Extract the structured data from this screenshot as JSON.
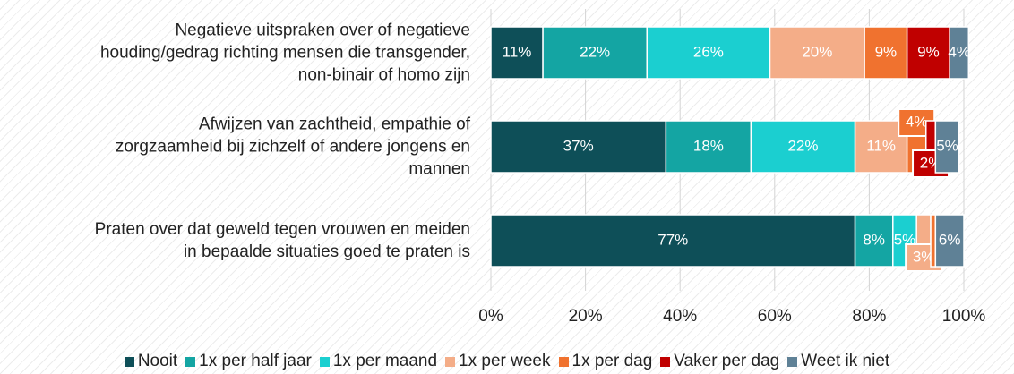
{
  "chart_data": {
    "type": "stacked-barh",
    "categories": [
      "Negatieve uitspraken over of negatieve\nhouding/gedrag richting mensen die transgender,\nnon-binair of homo zijn",
      "Afwijzen van zachtheid, empathie of\nzorgzaamheid bij zichzelf of andere jongens en\nmannen",
      "Praten over dat geweld tegen vrouwen en meiden\nin bepaalde situaties goed te praten is"
    ],
    "series": [
      {
        "name": "Nooit",
        "color": "#0e4f58",
        "values": [
          11,
          37,
          77
        ],
        "value_labels": [
          "11%",
          "37%",
          "77%"
        ]
      },
      {
        "name": "1x per half jaar",
        "color": "#14a5a3",
        "values": [
          22,
          18,
          8
        ],
        "value_labels": [
          "22%",
          "18%",
          "8%"
        ]
      },
      {
        "name": "1x per maand",
        "color": "#1bcfd0",
        "values": [
          26,
          22,
          5
        ],
        "value_labels": [
          "26%",
          "22%",
          "5%"
        ]
      },
      {
        "name": "1x per week",
        "color": "#f4ad88",
        "values": [
          20,
          11,
          3
        ],
        "value_labels": [
          "20%",
          "11%",
          "3%"
        ]
      },
      {
        "name": "1x per dag",
        "color": "#f0722f",
        "values": [
          9,
          4,
          1
        ],
        "value_labels": [
          "9%",
          "4%",
          null
        ]
      },
      {
        "name": "Vaker per dag",
        "color": "#c00000",
        "values": [
          9,
          2,
          0
        ],
        "value_labels": [
          "9%",
          "2%",
          null
        ]
      },
      {
        "name": "Weet ik niet",
        "color": "#5f8196",
        "values": [
          4,
          5,
          6
        ],
        "value_labels": [
          "4%",
          "5%",
          "6%"
        ]
      }
    ],
    "xlim": [
      0,
      100
    ],
    "xticks": [
      {
        "value": 0,
        "label": "0%"
      },
      {
        "value": 20,
        "label": "20%"
      },
      {
        "value": 40,
        "label": "40%"
      },
      {
        "value": 60,
        "label": "60%"
      },
      {
        "value": 80,
        "label": "80%"
      },
      {
        "value": 100,
        "label": "100%"
      }
    ],
    "grid": true,
    "legend": "bottom"
  }
}
